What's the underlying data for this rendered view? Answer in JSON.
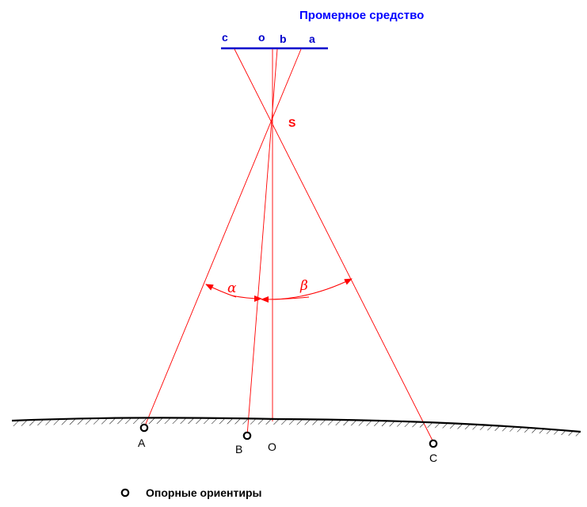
{
  "title": "Промерное средство",
  "bar_labels": {
    "c": "c",
    "o": "o",
    "b": "b",
    "a": "a"
  },
  "center_label": "S",
  "angle_labels": {
    "alpha": "α",
    "beta": "β"
  },
  "ground_labels": {
    "A": "A",
    "B": "B",
    "O": "O",
    "C": "C"
  },
  "legend": {
    "text": "Опорные ориентиры",
    "icon": "ring-marker-icon"
  },
  "colors": {
    "title": "#0000ff",
    "bar": "#0000cc",
    "rays": "#ff0000",
    "ground": "#000000"
  }
}
